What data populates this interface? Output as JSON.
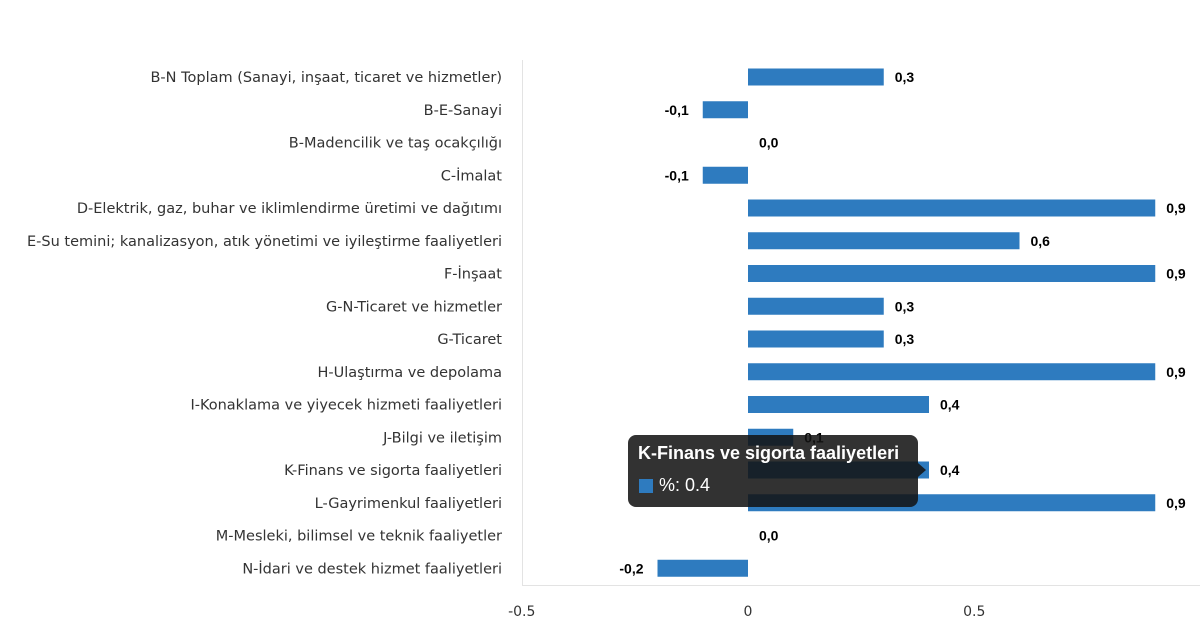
{
  "chart_data": {
    "type": "bar",
    "orientation": "horizontal",
    "categories": [
      "B-N Toplam (Sanayi, inşaat, ticaret ve hizmetler)",
      "B-E-Sanayi",
      "B-Madencilik ve taş ocakçılığı",
      "C-İmalat",
      "D-Elektrik, gaz, buhar ve iklimlendirme üretimi ve dağıtımı",
      "E-Su temini; kanalizasyon, atık yönetimi ve iyileştirme faaliyetleri",
      "F-İnşaat",
      "G-N-Ticaret ve hizmetler",
      "G-Ticaret",
      "H-Ulaştırma ve depolama",
      "I-Konaklama ve yiyecek hizmeti faaliyetleri",
      "J-Bilgi ve iletişim",
      "K-Finans ve sigorta faaliyetleri",
      "L-Gayrimenkul faaliyetleri",
      "M-Mesleki, bilimsel ve teknik faaliyetler",
      "N-İdari ve destek hizmet faaliyetleri"
    ],
    "values": [
      0.3,
      -0.1,
      0.0,
      -0.1,
      0.9,
      0.6,
      0.9,
      0.3,
      0.3,
      0.9,
      0.4,
      0.1,
      0.4,
      0.9,
      0.0,
      -0.2
    ],
    "data_labels": [
      "0,3",
      "-0,1",
      "0,0",
      "-0,1",
      "0,9",
      "0,6",
      "0,9",
      "0,3",
      "0,3",
      "0,9",
      "0,4",
      "0,1",
      "0,4",
      "0,9",
      "0,0",
      "-0,2"
    ],
    "xlim": [
      -0.5,
      0.95
    ],
    "xticks": [
      -0.5,
      0,
      0.5
    ],
    "xtick_labels": [
      "-0.5",
      "0",
      "0.5"
    ],
    "grid": false,
    "bar_color": "#2e7bbf"
  },
  "tooltip": {
    "title": "K-Finans ve sigorta faaliyetleri",
    "value_text": "%: 0.4"
  }
}
